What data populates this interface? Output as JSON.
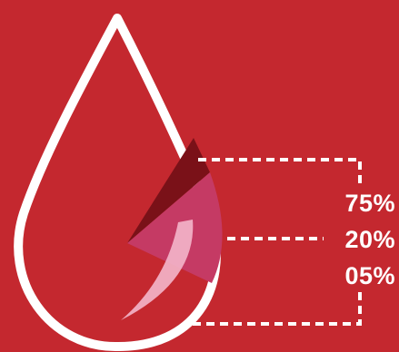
{
  "colors": {
    "background": "#c4282f",
    "outline": "#ffffff",
    "dark_segment": "#7a1118",
    "pink_segment": "#c53a64",
    "light_segment": "#f2b3c8"
  },
  "labels": [
    {
      "text": "75%"
    },
    {
      "text": "20%"
    },
    {
      "text": "05%"
    }
  ]
}
